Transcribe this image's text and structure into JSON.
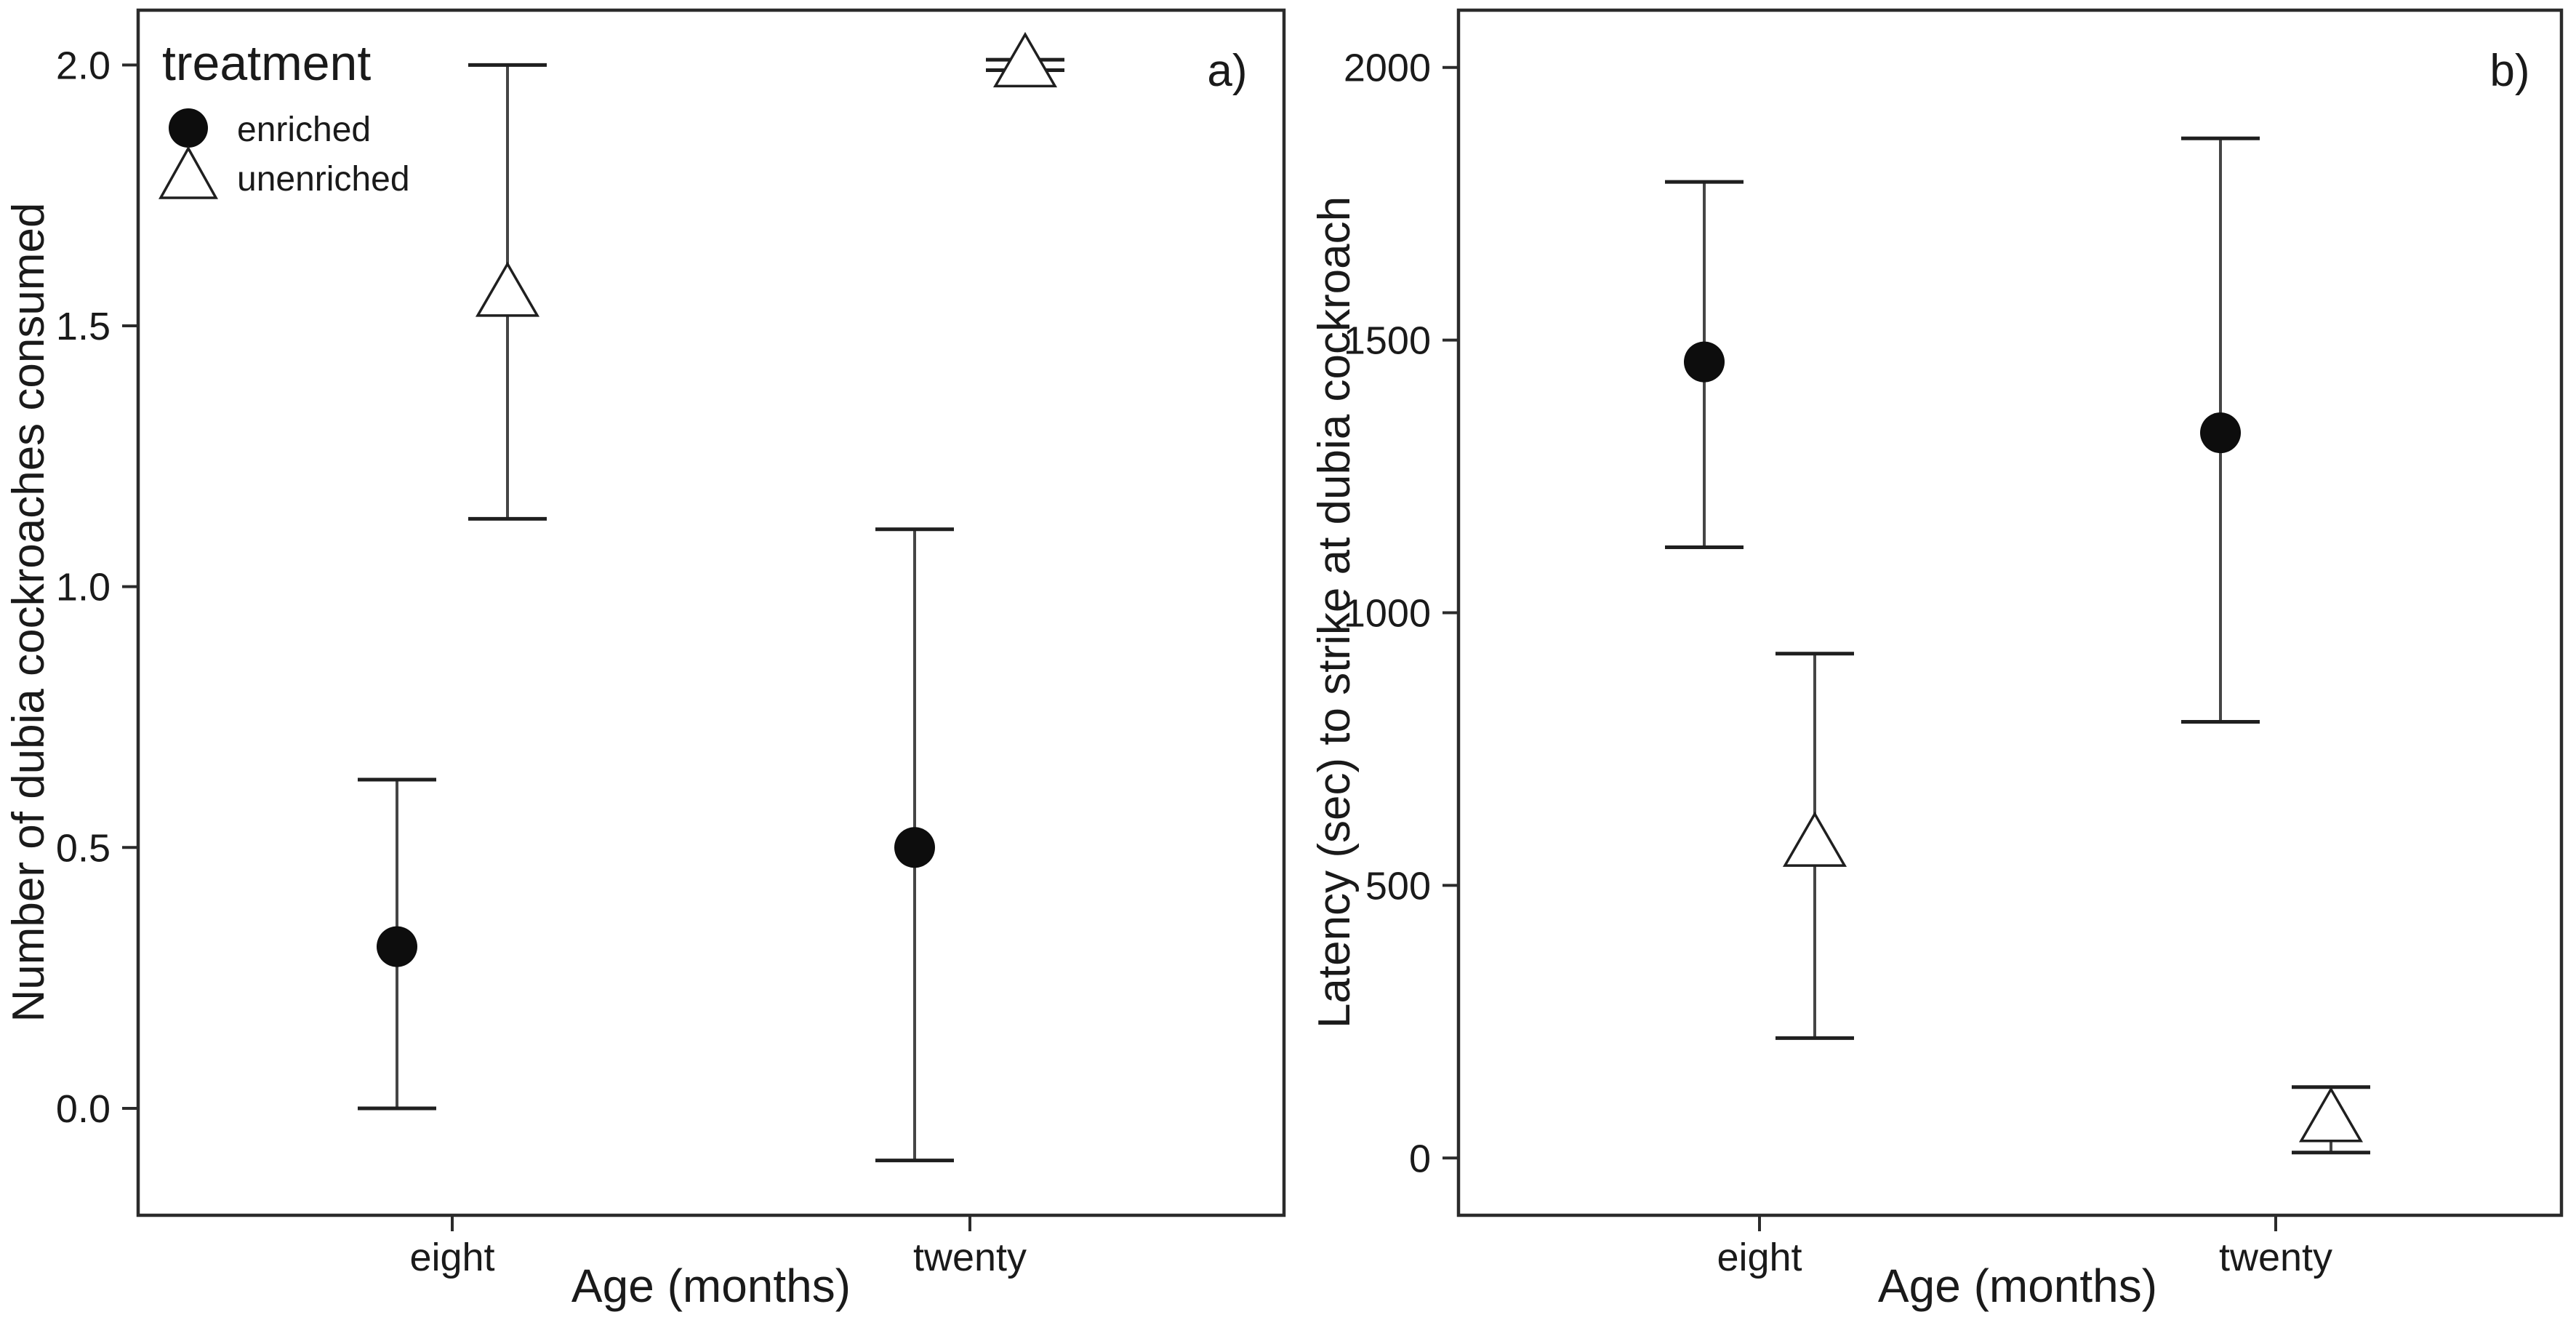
{
  "figure": {
    "legend": {
      "title": "treatment",
      "position": "top-left-inside-panel-a",
      "items": [
        {
          "label": "enriched",
          "marker": "filled-circle-icon"
        },
        {
          "label": "unenriched",
          "marker": "open-triangle-icon"
        }
      ]
    },
    "colors": {
      "marker_fill": "#0d0d0d",
      "triangle_fill": "#ffffff",
      "stroke": "#2b2b2b",
      "errorbar_stem": "#454545",
      "text": "#1a1a1a",
      "background": "#ffffff"
    }
  },
  "chart_data": [
    {
      "type": "pointrange",
      "panel_label": "a)",
      "xlabel": "Age (months)",
      "ylabel": "Number of dubia cockroaches consumed",
      "categories": [
        "eight",
        "twenty"
      ],
      "ylim": [
        0,
        2
      ],
      "ytick_values": [
        0,
        0.5,
        1,
        1.5,
        2
      ],
      "ytick_labels": [
        "0.0",
        "0.5",
        "1.0",
        "1.5",
        "2.0"
      ],
      "grid": false,
      "legend_position": "top-left inside plot",
      "series": [
        {
          "name": "enriched",
          "marker": "filled-circle",
          "points": [
            {
              "category": "eight",
              "mean": 0.31,
              "lower": 0.0,
              "upper": 0.63
            },
            {
              "category": "twenty",
              "mean": 0.5,
              "lower": -0.1,
              "upper": 1.11
            }
          ]
        },
        {
          "name": "unenriched",
          "marker": "open-triangle",
          "points": [
            {
              "category": "eight",
              "mean": 1.56,
              "lower": 1.13,
              "upper": 2.0
            },
            {
              "category": "twenty",
              "mean": 2.0,
              "lower": 1.99,
              "upper": 2.01
            }
          ]
        }
      ]
    },
    {
      "type": "pointrange",
      "panel_label": "b)",
      "xlabel": "Age (months)",
      "ylabel": "Latency (sec) to strike at dubia cockroach",
      "categories": [
        "eight",
        "twenty"
      ],
      "ylim": [
        0,
        2000
      ],
      "ytick_values": [
        0,
        500,
        1000,
        1500,
        2000
      ],
      "ytick_labels": [
        "0",
        "500",
        "1000",
        "1500",
        "2000"
      ],
      "grid": false,
      "legend_position": "none",
      "series": [
        {
          "name": "enriched",
          "marker": "filled-circle",
          "points": [
            {
              "category": "eight",
              "mean": 1460,
              "lower": 1120,
              "upper": 1790
            },
            {
              "category": "twenty",
              "mean": 1330,
              "lower": 800,
              "upper": 1870
            }
          ]
        },
        {
          "name": "unenriched",
          "marker": "open-triangle",
          "points": [
            {
              "category": "eight",
              "mean": 575,
              "lower": 220,
              "upper": 925
            },
            {
              "category": "twenty",
              "mean": 70,
              "lower": 10,
              "upper": 130
            }
          ]
        }
      ]
    }
  ]
}
